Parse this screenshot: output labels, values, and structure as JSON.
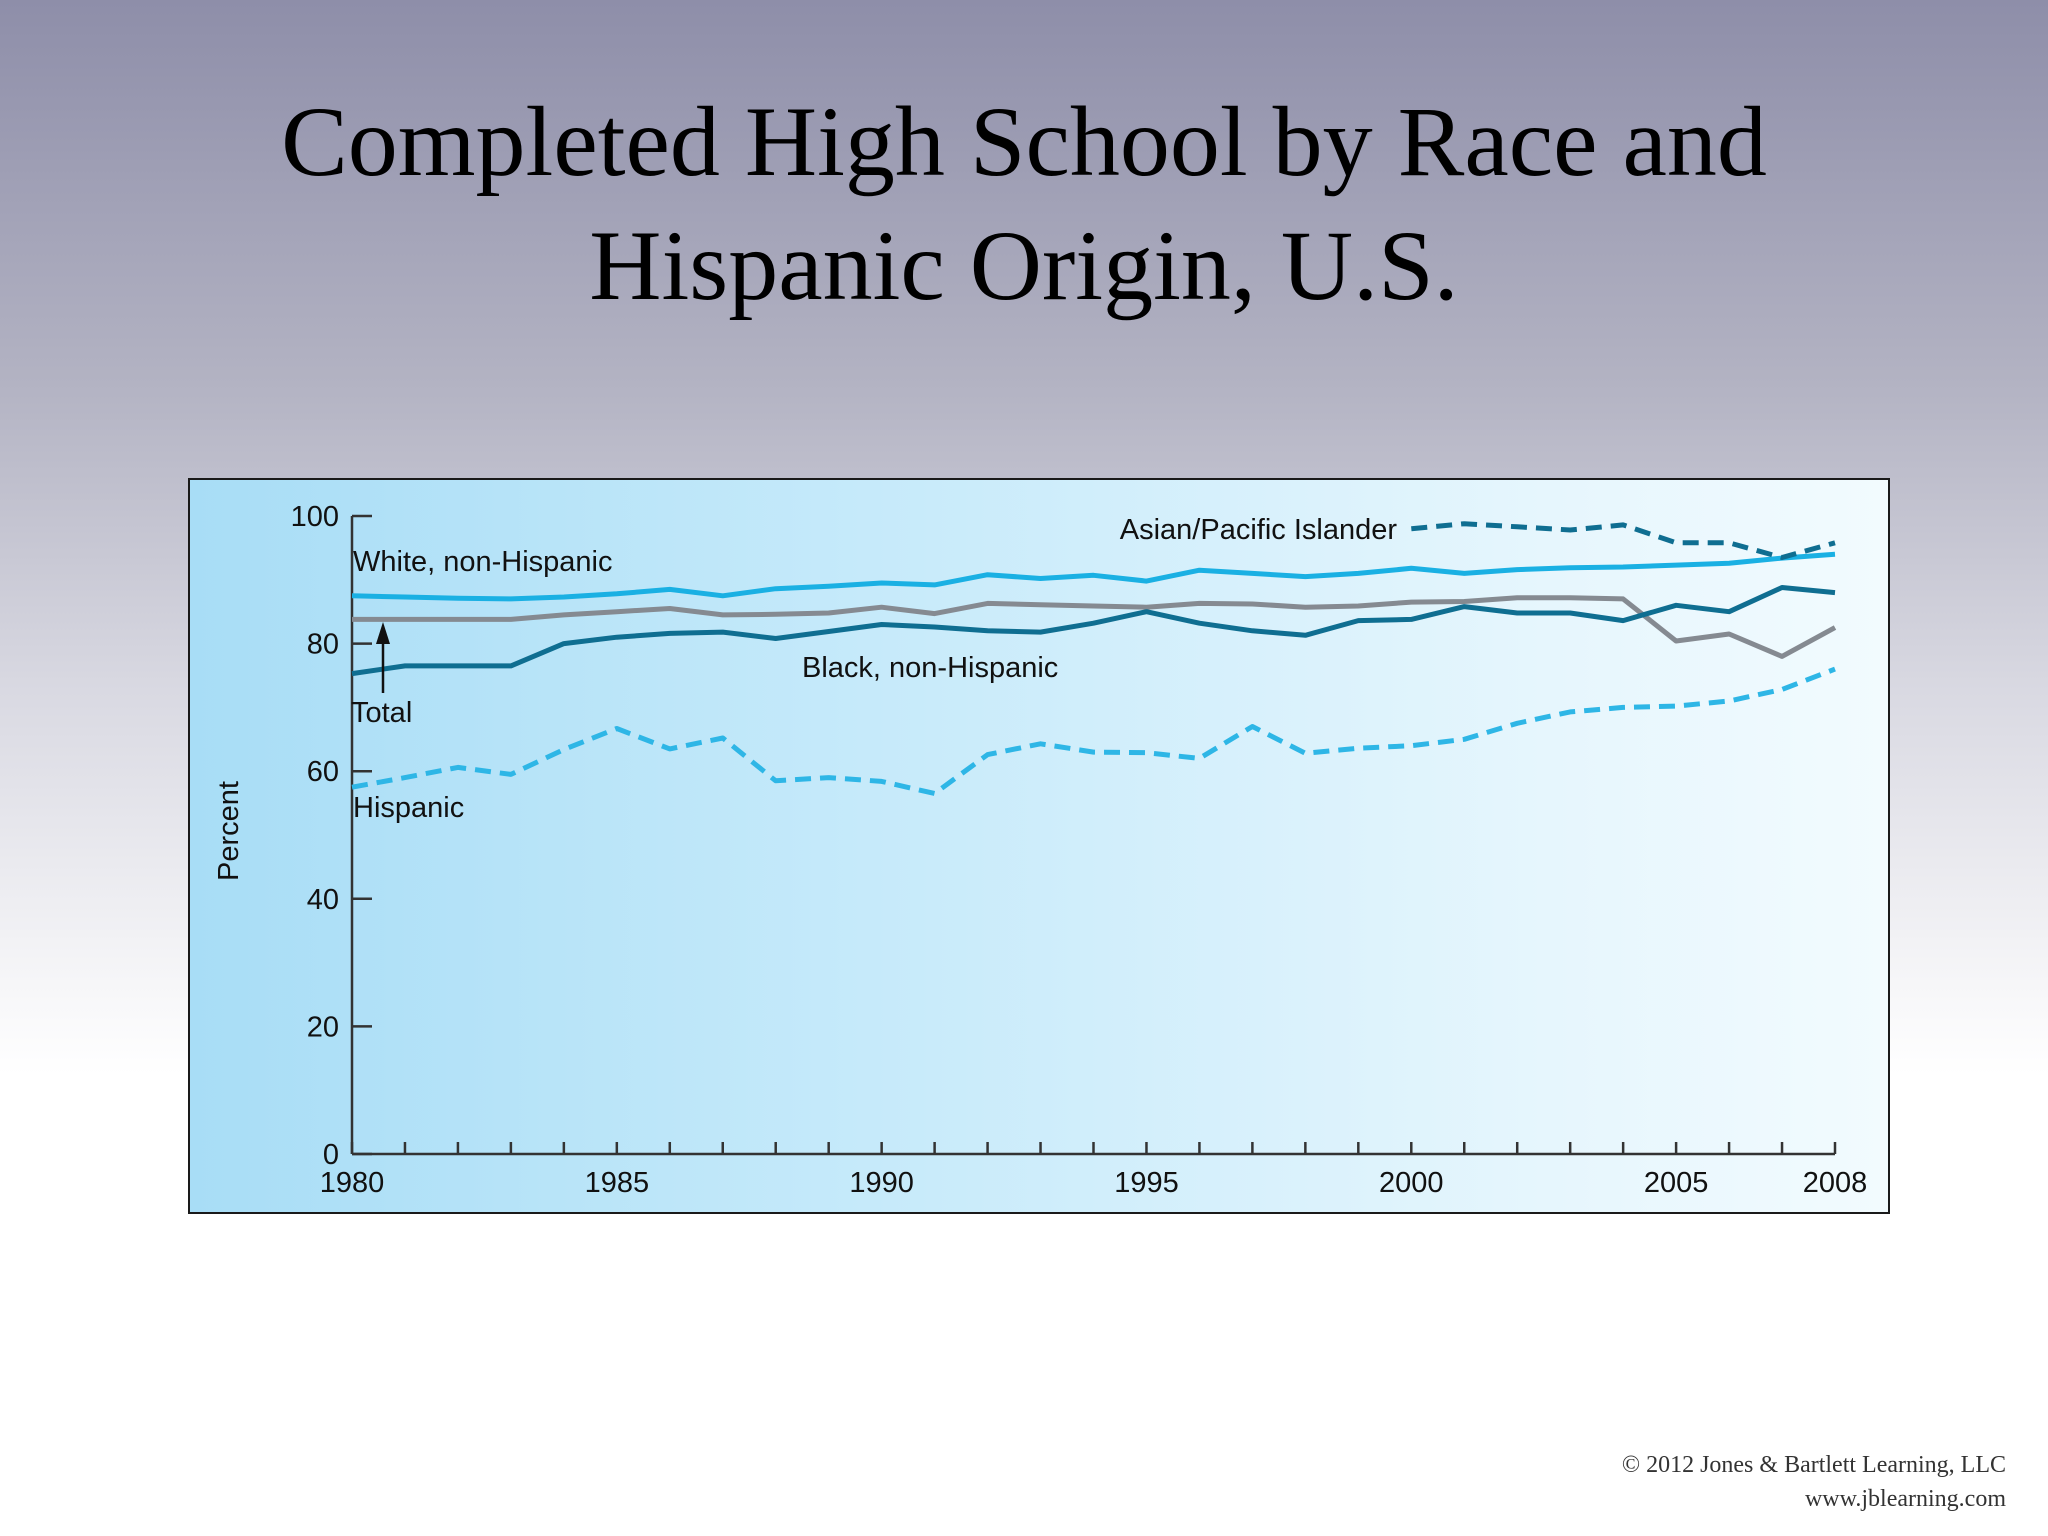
{
  "slide": {
    "title_line1": "Completed High School by Race and",
    "title_line2": "Hispanic Origin, U.S.",
    "copyright_line1": "© 2012 Jones & Bartlett Learning, LLC",
    "copyright_line2": "www.jblearning.com"
  },
  "chart_data": {
    "type": "line",
    "title": "",
    "xlabel": "",
    "ylabel": "Percent",
    "xlim": [
      1980,
      2008
    ],
    "ylim": [
      0,
      100
    ],
    "x_ticks_labeled": [
      1980,
      1985,
      1990,
      1995,
      2000,
      2005,
      2008
    ],
    "y_ticks": [
      0,
      20,
      40,
      60,
      80,
      100
    ],
    "grid": false,
    "legend": "inline labels",
    "x": [
      1980,
      1981,
      1982,
      1983,
      1984,
      1985,
      1986,
      1987,
      1988,
      1989,
      1990,
      1991,
      1992,
      1993,
      1994,
      1995,
      1996,
      1997,
      1998,
      1999,
      2000,
      2001,
      2002,
      2003,
      2004,
      2005,
      2006,
      2007,
      2008
    ],
    "series": [
      {
        "name": "White, non-Hispanic",
        "color": "#1ab0e3",
        "style": "solid",
        "values": [
          87.5,
          87.3,
          87.1,
          87.0,
          87.3,
          87.8,
          88.5,
          87.5,
          88.6,
          89.0,
          89.5,
          89.2,
          90.8,
          90.2,
          90.7,
          89.8,
          91.5,
          91.0,
          90.5,
          91.0,
          91.8,
          91.0,
          91.6,
          91.9,
          92.0,
          92.3,
          92.6,
          93.4,
          94.0
        ]
      },
      {
        "name": "Total",
        "color": "#858a91",
        "style": "solid",
        "values": [
          83.8,
          83.8,
          83.8,
          83.8,
          84.5,
          85.0,
          85.5,
          84.5,
          84.6,
          84.8,
          85.7,
          84.7,
          86.3,
          86.1,
          85.9,
          85.7,
          86.3,
          86.2,
          85.7,
          85.9,
          86.5,
          86.6,
          87.2,
          87.2,
          87.0,
          80.4,
          81.5,
          78.0,
          82.5
        ]
      },
      {
        "name": "Black, non-Hispanic",
        "color": "#0f6e91",
        "style": "solid",
        "values": [
          75.3,
          76.5,
          76.5,
          76.5,
          80.0,
          81.0,
          81.6,
          81.8,
          80.8,
          81.9,
          83.0,
          82.6,
          82.0,
          81.8,
          83.2,
          85.0,
          83.2,
          82.0,
          81.3,
          83.6,
          83.8,
          85.8,
          84.8,
          84.8,
          83.6,
          86.0,
          85.0,
          88.8,
          88.0
        ]
      },
      {
        "name": "Hispanic",
        "color": "#2eb6e6",
        "style": "dashed",
        "values": [
          57.5,
          59.0,
          60.6,
          59.5,
          63.4,
          66.7,
          63.5,
          65.2,
          58.5,
          59.0,
          58.4,
          56.5,
          62.6,
          64.3,
          63.0,
          62.9,
          62.0,
          67.0,
          62.8,
          63.6,
          64.0,
          65.0,
          67.5,
          69.3,
          70.0,
          70.2,
          71.0,
          72.8,
          76.0
        ]
      },
      {
        "name": "Asian/Pacific Islander",
        "color": "#0f6e91",
        "style": "dashed",
        "x": [
          2000,
          2001,
          2002,
          2003,
          2004,
          2005,
          2006,
          2007,
          2008
        ],
        "values": [
          98.0,
          98.8,
          98.3,
          97.8,
          98.6,
          95.8,
          95.8,
          93.5,
          95.8
        ]
      }
    ],
    "labels": {
      "white": "White, non-Hispanic",
      "asian": "Asian/Pacific Islander",
      "black": "Black, non-Hispanic",
      "total": "Total",
      "hispanic": "Hispanic"
    }
  }
}
